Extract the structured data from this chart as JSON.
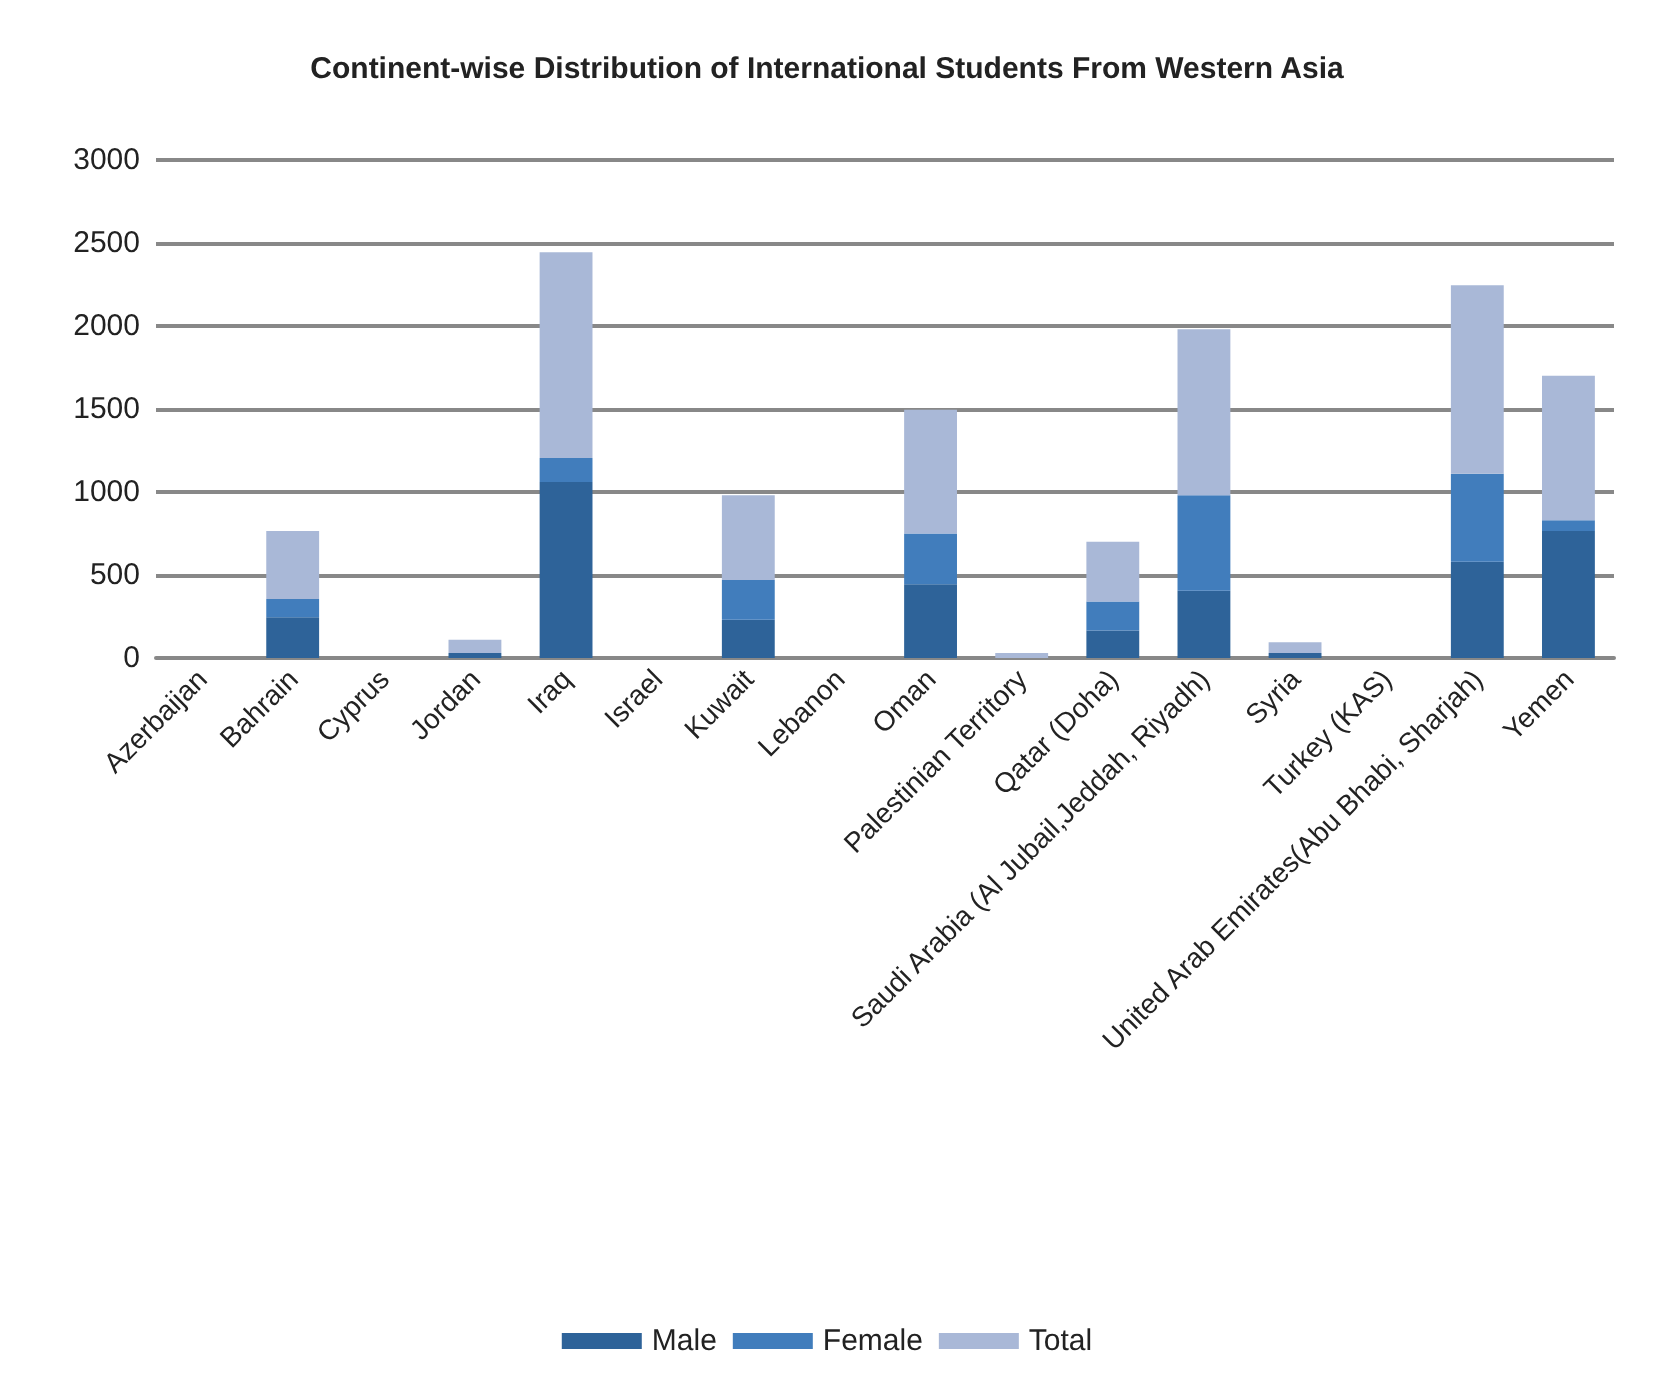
{
  "chart_data": {
    "type": "bar",
    "title": "Continent-wise Distribution of International Students From Western Asia",
    "categories": [
      "Azerbaijan",
      "Bahrain",
      "Cyprus",
      "Jordan",
      "Iraq",
      "Israel",
      "Kuwait",
      "Lebanon",
      "Oman",
      "Palestinian Territory",
      "Qatar (Doha)",
      "Saudi Arabia (Al Jubail,Jeddah, Riyadh)",
      "Syria",
      "Turkey (KAS)",
      "United Arab Emirates(Abu Bhabi, Sharjah)",
      "Yemen"
    ],
    "series": [
      {
        "name": "Male",
        "color": "#2e6399",
        "values": [
          0,
          245,
          0,
          30,
          1060,
          0,
          230,
          0,
          445,
          0,
          165,
          405,
          30,
          0,
          580,
          765
        ]
      },
      {
        "name": "Female",
        "color": "#417dbc",
        "values": [
          0,
          110,
          0,
          0,
          145,
          0,
          240,
          0,
          305,
          0,
          175,
          575,
          0,
          0,
          530,
          65
        ]
      },
      {
        "name": "Total",
        "color": "#a9b8d7",
        "values": [
          0,
          410,
          0,
          80,
          1240,
          0,
          510,
          0,
          745,
          30,
          360,
          1000,
          65,
          0,
          1135,
          870
        ]
      }
    ],
    "stacked": true,
    "ylim": [
      0,
      3000
    ],
    "yticks": [
      0,
      500,
      1000,
      1500,
      2000,
      2500,
      3000
    ],
    "grid": "y",
    "legend": "bottom"
  }
}
